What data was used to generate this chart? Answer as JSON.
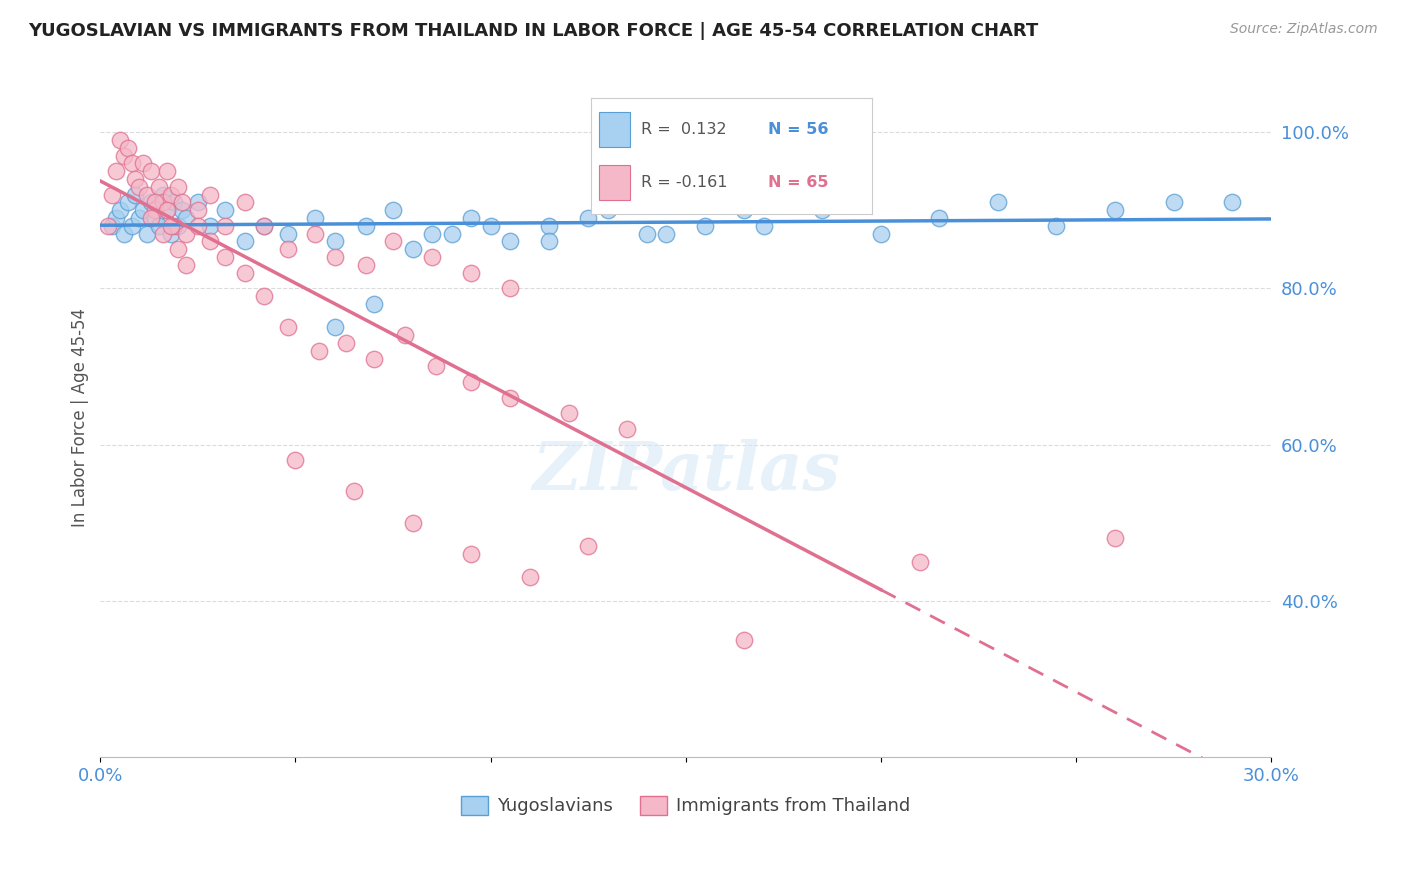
{
  "title": "YUGOSLAVIAN VS IMMIGRANTS FROM THAILAND IN LABOR FORCE | AGE 45-54 CORRELATION CHART",
  "source_text": "Source: ZipAtlas.com",
  "ylabel": "In Labor Force | Age 45-54",
  "xmin": 0.0,
  "xmax": 0.3,
  "ymin": 0.2,
  "ymax": 1.07,
  "ytick_labels": [
    "40.0%",
    "60.0%",
    "80.0%",
    "100.0%"
  ],
  "ytick_values": [
    0.4,
    0.6,
    0.8,
    1.0
  ],
  "color_blue": "#A8D0F0",
  "color_pink": "#F5B8C8",
  "color_blue_edge": "#5A9FD4",
  "color_pink_edge": "#E07090",
  "color_blue_line": "#4A90D9",
  "color_pink_line": "#E07090",
  "color_title": "#222222",
  "color_axis_labels": "#4A90D9",
  "color_grid": "#CCCCCC",
  "background_color": "#FFFFFF",
  "blue_x": [
    0.003,
    0.004,
    0.005,
    0.006,
    0.007,
    0.008,
    0.009,
    0.01,
    0.011,
    0.012,
    0.013,
    0.014,
    0.015,
    0.016,
    0.017,
    0.018,
    0.019,
    0.02,
    0.021,
    0.022,
    0.025,
    0.028,
    0.032,
    0.037,
    0.042,
    0.048,
    0.055,
    0.06,
    0.068,
    0.075,
    0.085,
    0.095,
    0.105,
    0.115,
    0.13,
    0.145,
    0.155,
    0.17,
    0.185,
    0.2,
    0.215,
    0.23,
    0.245,
    0.26,
    0.275,
    0.06,
    0.07,
    0.08,
    0.09,
    0.1,
    0.115,
    0.125,
    0.14,
    0.155,
    0.165,
    0.29
  ],
  "blue_y": [
    0.88,
    0.89,
    0.9,
    0.87,
    0.91,
    0.88,
    0.92,
    0.89,
    0.9,
    0.87,
    0.91,
    0.89,
    0.88,
    0.92,
    0.9,
    0.87,
    0.91,
    0.88,
    0.9,
    0.89,
    0.91,
    0.88,
    0.9,
    0.86,
    0.88,
    0.87,
    0.89,
    0.86,
    0.88,
    0.9,
    0.87,
    0.89,
    0.86,
    0.88,
    0.9,
    0.87,
    0.91,
    0.88,
    0.9,
    0.87,
    0.89,
    0.91,
    0.88,
    0.9,
    0.91,
    0.75,
    0.78,
    0.85,
    0.87,
    0.88,
    0.86,
    0.89,
    0.87,
    0.88,
    0.9,
    0.91
  ],
  "pink_x": [
    0.002,
    0.003,
    0.004,
    0.005,
    0.006,
    0.007,
    0.008,
    0.009,
    0.01,
    0.011,
    0.012,
    0.013,
    0.014,
    0.015,
    0.016,
    0.017,
    0.018,
    0.019,
    0.02,
    0.021,
    0.022,
    0.025,
    0.028,
    0.032,
    0.037,
    0.042,
    0.048,
    0.055,
    0.06,
    0.068,
    0.075,
    0.085,
    0.095,
    0.105,
    0.013,
    0.014,
    0.016,
    0.017,
    0.018,
    0.02,
    0.022,
    0.025,
    0.028,
    0.032,
    0.037,
    0.042,
    0.048,
    0.056,
    0.063,
    0.07,
    0.078,
    0.086,
    0.095,
    0.105,
    0.12,
    0.135,
    0.05,
    0.065,
    0.08,
    0.095,
    0.11,
    0.125,
    0.165,
    0.21,
    0.26
  ],
  "pink_y": [
    0.88,
    0.92,
    0.95,
    0.99,
    0.97,
    0.98,
    0.96,
    0.94,
    0.93,
    0.96,
    0.92,
    0.95,
    0.9,
    0.93,
    0.91,
    0.95,
    0.92,
    0.88,
    0.93,
    0.91,
    0.87,
    0.9,
    0.92,
    0.88,
    0.91,
    0.88,
    0.85,
    0.87,
    0.84,
    0.83,
    0.86,
    0.84,
    0.82,
    0.8,
    0.89,
    0.91,
    0.87,
    0.9,
    0.88,
    0.85,
    0.83,
    0.88,
    0.86,
    0.84,
    0.82,
    0.79,
    0.75,
    0.72,
    0.73,
    0.71,
    0.74,
    0.7,
    0.68,
    0.66,
    0.64,
    0.62,
    0.58,
    0.54,
    0.5,
    0.46,
    0.43,
    0.47,
    0.35,
    0.45,
    0.48
  ]
}
